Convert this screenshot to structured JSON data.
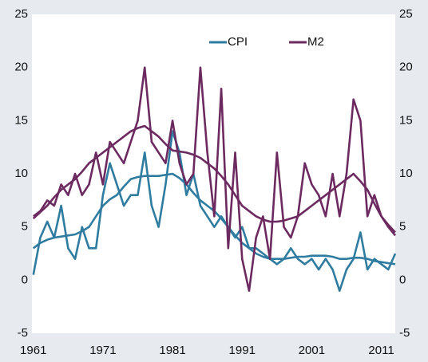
{
  "chart_data": {
    "type": "line",
    "x": [
      1961,
      1962,
      1963,
      1964,
      1965,
      1966,
      1967,
      1968,
      1969,
      1970,
      1971,
      1972,
      1973,
      1974,
      1975,
      1976,
      1977,
      1978,
      1979,
      1980,
      1981,
      1982,
      1983,
      1984,
      1985,
      1986,
      1987,
      1988,
      1989,
      1990,
      1991,
      1992,
      1993,
      1994,
      1995,
      1996,
      1997,
      1998,
      1999,
      2000,
      2001,
      2002,
      2003,
      2004,
      2005,
      2006,
      2007,
      2008,
      2009,
      2010,
      2011,
      2012,
      2013
    ],
    "series": [
      {
        "name": "CPI",
        "color": "#2f7ca0",
        "values": [
          0.5,
          4,
          5.5,
          4,
          7,
          3,
          2,
          5,
          3,
          3,
          8,
          11,
          9,
          7,
          8,
          8,
          12,
          7,
          5,
          9,
          14,
          12,
          8,
          10,
          7,
          6,
          5,
          6,
          5,
          4,
          5,
          3,
          3,
          2.5,
          2,
          1.5,
          2,
          3,
          2,
          1.5,
          2,
          1,
          2,
          1,
          -1,
          1,
          2,
          4.5,
          1,
          2,
          1.5,
          1,
          2.5
        ],
        "trend": [
          3,
          3.5,
          3.8,
          4,
          4.1,
          4.2,
          4.3,
          4.6,
          5,
          6,
          7,
          7.6,
          8,
          8.8,
          9.5,
          9.7,
          9.8,
          9.8,
          9.8,
          9.9,
          10,
          9.6,
          9,
          8.2,
          7.5,
          7,
          6.5,
          5.8,
          5,
          4.2,
          3.5,
          3,
          2.5,
          2.2,
          2,
          2,
          2,
          2.1,
          2.2,
          2.2,
          2.3,
          2.3,
          2.3,
          2.2,
          2,
          2,
          2.1,
          2.1,
          2,
          1.8,
          1.7,
          1.6,
          1.5
        ]
      },
      {
        "name": "M2",
        "color": "#6c2a60",
        "values": [
          6,
          6.5,
          7.5,
          7,
          9,
          8,
          10,
          8,
          9,
          12,
          9,
          13,
          12,
          11,
          13,
          15,
          20,
          13,
          12,
          11,
          15,
          11,
          9,
          10,
          20,
          12,
          6,
          18,
          3,
          12,
          2,
          -1,
          4,
          6,
          2,
          12,
          5,
          4,
          6,
          11,
          9,
          8,
          6,
          10,
          6,
          10,
          17,
          15,
          6,
          8,
          6,
          5,
          4.2
        ],
        "trend": [
          5.8,
          6.4,
          7,
          7.8,
          8.5,
          9,
          9.5,
          10.2,
          11,
          11.5,
          12,
          12.5,
          13,
          13.5,
          14,
          14.3,
          14.5,
          14,
          13.5,
          12.8,
          12.2,
          12.1,
          12,
          11.8,
          11.5,
          11,
          10.5,
          9.8,
          9,
          8,
          7,
          6.5,
          6,
          5.7,
          5.5,
          5.5,
          5.6,
          5.8,
          6,
          6.5,
          7,
          7.5,
          8,
          8.5,
          9,
          9.5,
          10,
          9.3,
          8.5,
          7.2,
          6,
          5.2,
          4.5
        ]
      }
    ],
    "xlim": [
      1960.8,
      2013
    ],
    "xticks": [
      1961,
      1971,
      1981,
      1991,
      2001,
      2011
    ],
    "ylim": [
      -5,
      25
    ],
    "yticks": [
      -5,
      0,
      5,
      10,
      15,
      20,
      25
    ],
    "y2lim": [
      -5,
      25
    ],
    "y2ticks": [
      -5,
      0,
      5,
      10,
      15,
      20,
      25
    ],
    "legend": "top-center"
  }
}
